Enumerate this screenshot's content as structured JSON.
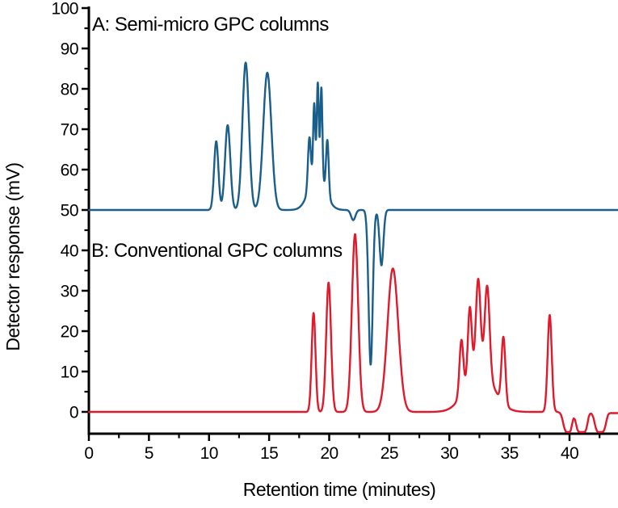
{
  "chart_data": {
    "type": "line",
    "title": "",
    "xlabel": "Retention time (minutes)",
    "ylabel": "Detector response (mV)",
    "xlim": [
      0,
      44.0
    ],
    "ylim": [
      -5.4,
      100
    ],
    "grid": false,
    "legend_position": "none",
    "x_major_ticks": [
      0,
      5,
      10,
      15,
      20,
      25,
      30,
      35,
      40
    ],
    "x_minor_ticks": [
      2.5,
      7.5,
      12.5,
      17.5,
      22.5,
      27.5,
      32.5,
      37.5,
      42.5
    ],
    "y_major_ticks": [
      0,
      10,
      20,
      30,
      40,
      50,
      60,
      70,
      80,
      90,
      100
    ],
    "y_minor_ticks": [
      5,
      15,
      25,
      35,
      45,
      55,
      65,
      75,
      85,
      95
    ],
    "annotations": [
      {
        "text": "A: Semi-micro GPC columns"
      },
      {
        "text": "B: Conventional GPC columns"
      }
    ],
    "series": [
      {
        "name": "A: Semi-micro GPC columns",
        "color": "#1A5E8C",
        "baseline_mV": 50,
        "peaks": [
          {
            "center_min": 10.6,
            "amp_mV": 17.0,
            "sigma_min": 0.18
          },
          {
            "center_min": 11.55,
            "amp_mV": 21.0,
            "sigma_min": 0.22
          },
          {
            "center_min": 13.05,
            "amp_mV": 36.5,
            "sigma_min": 0.27
          },
          {
            "center_min": 14.85,
            "amp_mV": 34.0,
            "sigma_min": 0.34
          },
          {
            "center_min": 19.0,
            "amp_mV": 9.0,
            "sigma_min": 0.65
          },
          {
            "center_min": 18.35,
            "amp_mV": 12.5,
            "sigma_min": 0.12
          },
          {
            "center_min": 18.75,
            "amp_mV": 18.0,
            "sigma_min": 0.085
          },
          {
            "center_min": 19.05,
            "amp_mV": 22.5,
            "sigma_min": 0.085
          },
          {
            "center_min": 19.35,
            "amp_mV": 22.5,
            "sigma_min": 0.085
          },
          {
            "center_min": 19.85,
            "amp_mV": 13.5,
            "sigma_min": 0.11
          },
          {
            "center_min": 22.0,
            "amp_mV": -2.5,
            "sigma_min": 0.18
          },
          {
            "center_min": 23.45,
            "amp_mV": -38.3,
            "sigma_min": 0.17
          },
          {
            "center_min": 24.35,
            "amp_mV": -13.7,
            "sigma_min": 0.16
          }
        ]
      },
      {
        "name": "B: Conventional GPC columns",
        "color": "#E0192B",
        "baseline_mV": 0,
        "clip_min_mV": -5.0,
        "peaks": [
          {
            "center_min": 18.7,
            "amp_mV": 24.5,
            "sigma_min": 0.16
          },
          {
            "center_min": 19.95,
            "amp_mV": 32.0,
            "sigma_min": 0.2
          },
          {
            "center_min": 22.15,
            "amp_mV": 44.0,
            "sigma_min": 0.26
          },
          {
            "center_min": 25.3,
            "amp_mV": 35.5,
            "sigma_min": 0.45
          },
          {
            "center_min": 32.5,
            "amp_mV": 11.0,
            "sigma_min": 1.1
          },
          {
            "center_min": 31.0,
            "amp_mV": 13.5,
            "sigma_min": 0.16
          },
          {
            "center_min": 31.7,
            "amp_mV": 17.5,
            "sigma_min": 0.16
          },
          {
            "center_min": 32.4,
            "amp_mV": 22.0,
            "sigma_min": 0.19
          },
          {
            "center_min": 33.15,
            "amp_mV": 22.0,
            "sigma_min": 0.2
          },
          {
            "center_min": 34.5,
            "amp_mV": 16.5,
            "sigma_min": 0.16
          },
          {
            "center_min": 38.35,
            "amp_mV": 24.0,
            "sigma_min": 0.17
          }
        ],
        "tail_points": [
          [
            39.0,
            0.0
          ],
          [
            39.1,
            -0.1
          ],
          [
            39.2,
            -0.3
          ],
          [
            39.3,
            -0.8
          ],
          [
            39.4,
            -1.8
          ],
          [
            39.5,
            -3.2
          ],
          [
            39.6,
            -4.3
          ],
          [
            39.7,
            -4.9
          ],
          [
            39.8,
            -5.0
          ],
          [
            39.9,
            -5.0
          ],
          [
            40.0,
            -5.0
          ],
          [
            40.1,
            -4.6
          ],
          [
            40.2,
            -3.2
          ],
          [
            40.3,
            -1.9
          ],
          [
            40.35,
            -1.6
          ],
          [
            40.45,
            -1.9
          ],
          [
            40.55,
            -3.1
          ],
          [
            40.65,
            -4.4
          ],
          [
            40.75,
            -4.9
          ],
          [
            40.9,
            -5.0
          ],
          [
            41.1,
            -5.0
          ],
          [
            41.3,
            -4.9
          ],
          [
            41.4,
            -4.2
          ],
          [
            41.5,
            -2.8
          ],
          [
            41.6,
            -1.2
          ],
          [
            41.7,
            -0.5
          ],
          [
            41.8,
            -0.4
          ],
          [
            41.9,
            -0.8
          ],
          [
            42.0,
            -1.6
          ],
          [
            42.1,
            -2.9
          ],
          [
            42.2,
            -4.1
          ],
          [
            42.3,
            -4.8
          ],
          [
            42.4,
            -5.0
          ],
          [
            42.6,
            -5.0
          ],
          [
            42.8,
            -4.9
          ],
          [
            42.9,
            -4.4
          ],
          [
            43.0,
            -3.3
          ],
          [
            43.1,
            -1.9
          ],
          [
            43.2,
            -0.8
          ],
          [
            43.3,
            -0.4
          ],
          [
            43.4,
            -0.3
          ],
          [
            43.6,
            -0.3
          ],
          [
            43.8,
            -0.3
          ],
          [
            44.0,
            -0.3
          ]
        ]
      }
    ]
  }
}
